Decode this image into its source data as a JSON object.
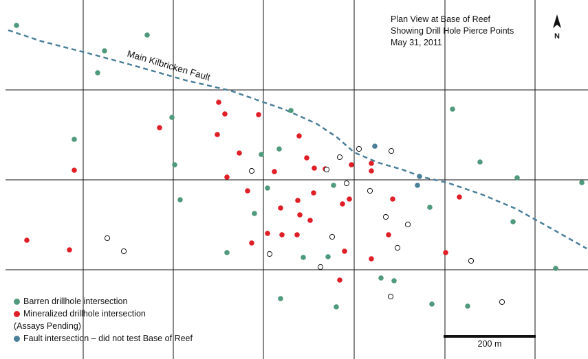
{
  "title": {
    "line1": "Plan View at Base of Reef",
    "line2": "Showing Drill Hole Pierce Points",
    "line3": "May 31, 2011"
  },
  "north_label": "N",
  "fault_label": "Main Kilbricken Fault",
  "scale_label": "200 m",
  "colors": {
    "barren": "#4f9a7c",
    "mineralized": "#e01e26",
    "pending_stroke": "#111111",
    "fault": "#4a7f9a",
    "grid": "#111111"
  },
  "legend": [
    {
      "key": "barren",
      "label": "Barren drillhole intersection",
      "symbol": "filled-circle"
    },
    {
      "key": "mineralized",
      "label": "Mineralized drillhole intersection",
      "symbol": "filled-circle"
    },
    {
      "key": "pending",
      "label": "(Assays Pending)",
      "symbol": "none"
    },
    {
      "key": "fault",
      "label": "Fault intersection – did not test Base of Reef",
      "symbol": "filled-circle"
    }
  ],
  "symbols": {
    "barren-icon": "green filled circle",
    "mineralized-icon": "red filled circle",
    "pending-icon": "open circle",
    "fault-icon": "blue filled circle",
    "north-arrow-icon": "north arrow"
  }
}
